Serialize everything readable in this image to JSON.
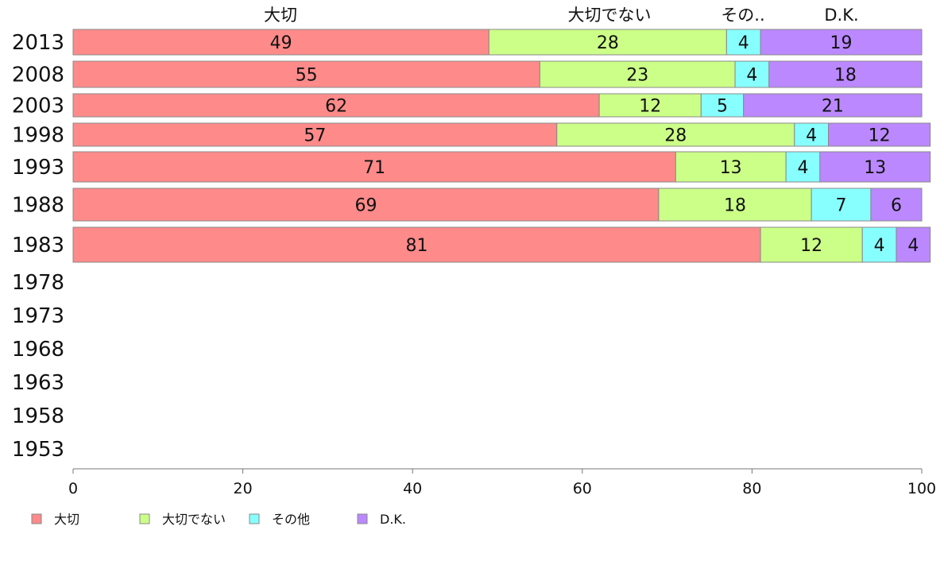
{
  "chart_data": {
    "type": "bar",
    "orientation": "horizontal",
    "stacked": true,
    "categories": [
      "2013",
      "2008",
      "2003",
      "1998",
      "1993",
      "1988",
      "1983",
      "1978",
      "1973",
      "1968",
      "1963",
      "1958",
      "1953"
    ],
    "series": [
      {
        "name": "大切",
        "header": "大切",
        "color": "#ff8a8a",
        "values": [
          49,
          55,
          62,
          57,
          71,
          69,
          81,
          null,
          null,
          null,
          null,
          null,
          null
        ]
      },
      {
        "name": "大切でない",
        "header": "大切でない",
        "color": "#ccff88",
        "values": [
          28,
          23,
          12,
          28,
          13,
          18,
          12,
          null,
          null,
          null,
          null,
          null,
          null
        ]
      },
      {
        "name": "その他",
        "header": "その..",
        "color": "#88ffff",
        "values": [
          4,
          4,
          5,
          4,
          4,
          7,
          4,
          null,
          null,
          null,
          null,
          null,
          null
        ]
      },
      {
        "name": "D.K.",
        "header": "D.K.",
        "color": "#bb88ff",
        "values": [
          19,
          18,
          21,
          12,
          13,
          6,
          4,
          null,
          null,
          null,
          null,
          null,
          null
        ]
      }
    ],
    "xlim": [
      0,
      100
    ],
    "xticks": [
      "0",
      "20",
      "40",
      "60",
      "80",
      "100"
    ],
    "title": "",
    "xlabel": "",
    "ylabel": "",
    "grid": false,
    "legend_position": "bottom-left"
  }
}
